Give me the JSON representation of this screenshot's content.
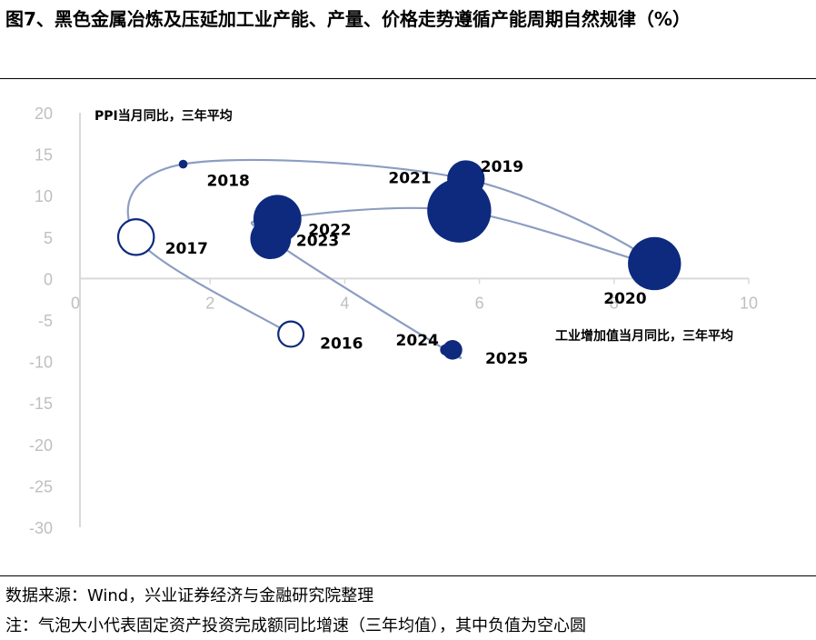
{
  "title": "图7、黑色金属冶炼及压延加工业产能、产量、价格走势遵循产能周期自然规律（%）",
  "source": "数据来源：Wind，兴业证券经济与金融研究院整理",
  "note": "注：气泡大小代表固定资产投资完成额同比增速（三年均值），其中负值为空心圆",
  "chart_data": {
    "type": "scatter",
    "subtype": "bubble",
    "xlabel": "工业增加值当月同比，三年平均",
    "ylabel": "PPI当月同比，三年平均",
    "xlim": [
      0,
      10
    ],
    "ylim": [
      -30,
      20
    ],
    "xticks": [
      0,
      2,
      4,
      6,
      8,
      10
    ],
    "yticks": [
      20,
      15,
      10,
      5,
      0,
      -5,
      -10,
      -15,
      -20,
      -25,
      -30
    ],
    "grid": false,
    "colors": {
      "bubble": "#0d2a7e",
      "line": "#8c9dc2",
      "tick": "#bfbfbf",
      "axis": "#d9d9d9"
    },
    "points": [
      {
        "label": "2016",
        "x": 3.2,
        "y": -6.7,
        "size": -2.5
      },
      {
        "label": "2017",
        "x": 0.9,
        "y": 5.0,
        "size": -5.0
      },
      {
        "label": "2018",
        "x": 1.6,
        "y": 13.8,
        "size": 0.3
      },
      {
        "label": "2019",
        "x": 5.8,
        "y": 12.0,
        "size": 5.5
      },
      {
        "label": "2020",
        "x": 8.6,
        "y": 1.8,
        "size": 11.0
      },
      {
        "label": "2021",
        "x": 5.7,
        "y": 8.2,
        "size": 16.0
      },
      {
        "label": "2022",
        "x": 3.0,
        "y": 7.2,
        "size": 9.0
      },
      {
        "label": "2023",
        "x": 2.9,
        "y": 4.8,
        "size": 6.5
      },
      {
        "label": "2024",
        "x": 5.5,
        "y": -8.6,
        "size": 0.5
      },
      {
        "label": "2025",
        "x": 5.6,
        "y": -8.6,
        "size": 1.5
      }
    ]
  }
}
